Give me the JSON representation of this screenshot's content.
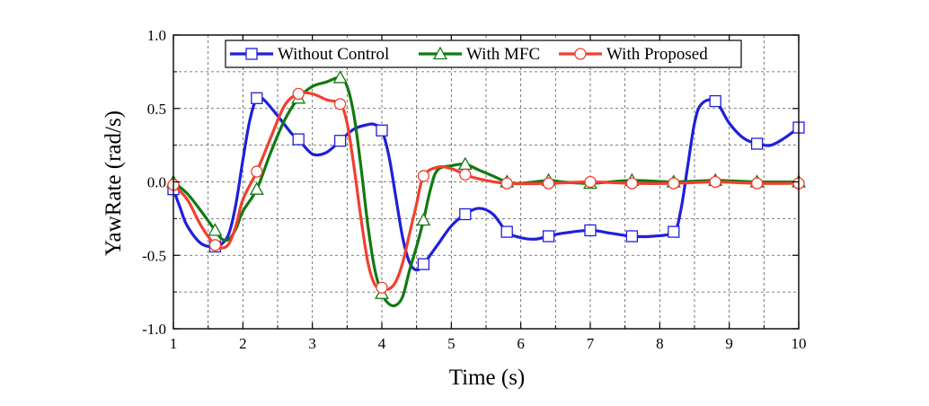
{
  "chart_data": {
    "type": "line",
    "title": "",
    "xlabel": "Time (s)",
    "ylabel": "YawRate (rad/s)",
    "xlim": [
      1,
      10
    ],
    "ylim": [
      -1.0,
      1.0
    ],
    "x_ticks": [
      "1",
      "2",
      "3",
      "4",
      "5",
      "6",
      "7",
      "8",
      "9",
      "10"
    ],
    "y_ticks": [
      "-1.0",
      "-0.5",
      "0.0",
      "0.5",
      "1.0"
    ],
    "grid": true,
    "legend_position": "top",
    "series": [
      {
        "name": "Without Control",
        "color": "#1f1fdc",
        "marker": "square",
        "points": [
          [
            1.0,
            -0.05
          ],
          [
            1.1,
            -0.18
          ],
          [
            1.2,
            -0.3
          ],
          [
            1.4,
            -0.42
          ],
          [
            1.6,
            -0.44
          ],
          [
            1.7,
            -0.42
          ],
          [
            1.8,
            -0.35
          ],
          [
            1.9,
            -0.15
          ],
          [
            2.0,
            0.15
          ],
          [
            2.1,
            0.42
          ],
          [
            2.2,
            0.57
          ],
          [
            2.3,
            0.56
          ],
          [
            2.5,
            0.45
          ],
          [
            2.7,
            0.33
          ],
          [
            2.8,
            0.29
          ],
          [
            3.0,
            0.19
          ],
          [
            3.2,
            0.2
          ],
          [
            3.4,
            0.28
          ],
          [
            3.6,
            0.36
          ],
          [
            3.8,
            0.39
          ],
          [
            3.9,
            0.39
          ],
          [
            4.0,
            0.35
          ],
          [
            4.1,
            0.18
          ],
          [
            4.2,
            -0.1
          ],
          [
            4.3,
            -0.38
          ],
          [
            4.4,
            -0.55
          ],
          [
            4.5,
            -0.6
          ],
          [
            4.6,
            -0.56
          ],
          [
            4.8,
            -0.43
          ],
          [
            5.0,
            -0.3
          ],
          [
            5.2,
            -0.22
          ],
          [
            5.4,
            -0.18
          ],
          [
            5.6,
            -0.22
          ],
          [
            5.8,
            -0.34
          ],
          [
            6.0,
            -0.38
          ],
          [
            6.2,
            -0.39
          ],
          [
            6.4,
            -0.37
          ],
          [
            6.6,
            -0.35
          ],
          [
            7.0,
            -0.33
          ],
          [
            7.3,
            -0.35
          ],
          [
            7.6,
            -0.37
          ],
          [
            7.9,
            -0.37
          ],
          [
            8.2,
            -0.34
          ],
          [
            8.3,
            -0.2
          ],
          [
            8.4,
            0.1
          ],
          [
            8.5,
            0.4
          ],
          [
            8.6,
            0.53
          ],
          [
            8.8,
            0.55
          ],
          [
            9.0,
            0.4
          ],
          [
            9.2,
            0.3
          ],
          [
            9.4,
            0.26
          ],
          [
            9.6,
            0.25
          ],
          [
            9.8,
            0.3
          ],
          [
            10.0,
            0.37
          ]
        ]
      },
      {
        "name": "With MFC",
        "color": "#107a10",
        "marker": "triangle",
        "points": [
          [
            1.0,
            0.0
          ],
          [
            1.2,
            -0.08
          ],
          [
            1.4,
            -0.2
          ],
          [
            1.6,
            -0.33
          ],
          [
            1.7,
            -0.39
          ],
          [
            1.8,
            -0.39
          ],
          [
            1.9,
            -0.32
          ],
          [
            2.0,
            -0.2
          ],
          [
            2.2,
            -0.05
          ],
          [
            2.4,
            0.2
          ],
          [
            2.6,
            0.42
          ],
          [
            2.8,
            0.57
          ],
          [
            3.0,
            0.65
          ],
          [
            3.2,
            0.68
          ],
          [
            3.4,
            0.71
          ],
          [
            3.5,
            0.65
          ],
          [
            3.6,
            0.45
          ],
          [
            3.7,
            0.1
          ],
          [
            3.8,
            -0.3
          ],
          [
            3.9,
            -0.6
          ],
          [
            4.0,
            -0.76
          ],
          [
            4.1,
            -0.83
          ],
          [
            4.2,
            -0.84
          ],
          [
            4.3,
            -0.78
          ],
          [
            4.4,
            -0.6
          ],
          [
            4.5,
            -0.44
          ],
          [
            4.6,
            -0.26
          ],
          [
            4.7,
            -0.05
          ],
          [
            4.8,
            0.08
          ],
          [
            5.0,
            0.11
          ],
          [
            5.2,
            0.12
          ],
          [
            5.4,
            0.08
          ],
          [
            5.6,
            0.04
          ],
          [
            5.8,
            0.0
          ],
          [
            6.0,
            -0.01
          ],
          [
            6.4,
            0.01
          ],
          [
            6.6,
            0.0
          ],
          [
            7.0,
            -0.01
          ],
          [
            7.6,
            0.01
          ],
          [
            8.2,
            0.0
          ],
          [
            8.8,
            0.01
          ],
          [
            9.4,
            0.0
          ],
          [
            10.0,
            0.0
          ]
        ]
      },
      {
        "name": "With Proposed",
        "color": "#f04030",
        "marker": "circle",
        "points": [
          [
            1.0,
            -0.02
          ],
          [
            1.2,
            -0.12
          ],
          [
            1.4,
            -0.3
          ],
          [
            1.6,
            -0.43
          ],
          [
            1.7,
            -0.45
          ],
          [
            1.8,
            -0.42
          ],
          [
            1.9,
            -0.3
          ],
          [
            2.0,
            -0.12
          ],
          [
            2.2,
            0.07
          ],
          [
            2.4,
            0.3
          ],
          [
            2.6,
            0.52
          ],
          [
            2.8,
            0.6
          ],
          [
            3.0,
            0.6
          ],
          [
            3.2,
            0.56
          ],
          [
            3.4,
            0.53
          ],
          [
            3.5,
            0.4
          ],
          [
            3.6,
            0.1
          ],
          [
            3.7,
            -0.25
          ],
          [
            3.8,
            -0.55
          ],
          [
            3.9,
            -0.7
          ],
          [
            4.0,
            -0.72
          ],
          [
            4.1,
            -0.73
          ],
          [
            4.2,
            -0.68
          ],
          [
            4.3,
            -0.55
          ],
          [
            4.4,
            -0.35
          ],
          [
            4.5,
            -0.15
          ],
          [
            4.6,
            0.04
          ],
          [
            4.8,
            0.1
          ],
          [
            5.0,
            0.09
          ],
          [
            5.2,
            0.05
          ],
          [
            5.4,
            0.02
          ],
          [
            5.8,
            -0.01
          ],
          [
            6.4,
            -0.01
          ],
          [
            7.0,
            0.0
          ],
          [
            7.6,
            -0.01
          ],
          [
            8.2,
            -0.01
          ],
          [
            8.8,
            0.0
          ],
          [
            9.4,
            -0.01
          ],
          [
            10.0,
            -0.01
          ]
        ]
      }
    ]
  }
}
